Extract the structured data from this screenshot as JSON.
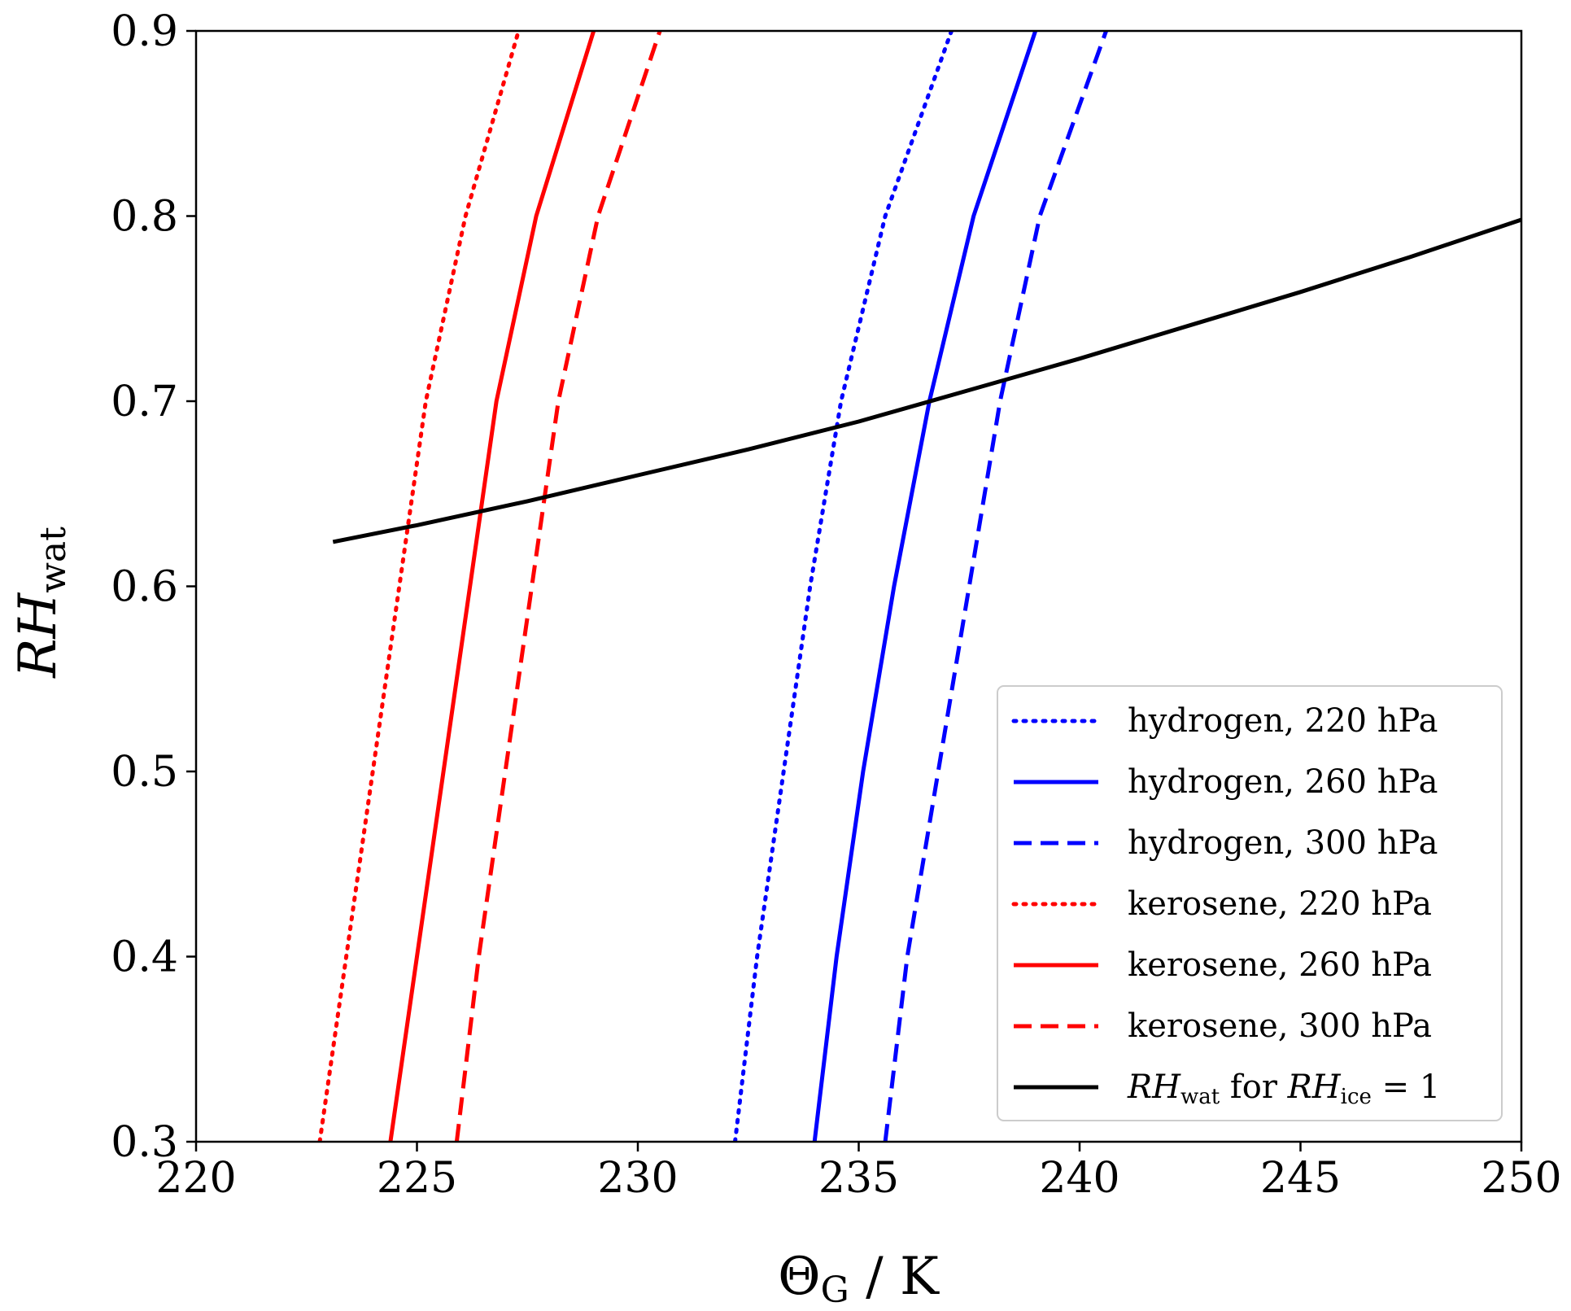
{
  "chart_data": {
    "type": "line",
    "title": "",
    "xlabel": {
      "main": "Θ",
      "sub": "G",
      "rest": " / K"
    },
    "ylabel": {
      "main": "RH",
      "sub": "wat"
    },
    "xlim": [
      220,
      250
    ],
    "ylim": [
      0.3,
      0.9
    ],
    "xticks": [
      220,
      225,
      230,
      235,
      240,
      245,
      250
    ],
    "yticks": [
      0.3,
      0.4,
      0.5,
      0.6,
      0.7,
      0.8,
      0.9
    ],
    "xtick_labels": [
      "220",
      "225",
      "230",
      "235",
      "240",
      "245",
      "250"
    ],
    "ytick_labels": [
      "0.3",
      "0.4",
      "0.5",
      "0.6",
      "0.7",
      "0.8",
      "0.9"
    ],
    "grid": false,
    "legend_position": "bottom-right",
    "series": [
      {
        "name": "hydrogen, 220 hPa",
        "color": "#0000ff",
        "style": "dotted",
        "points": [
          [
            232.2,
            0.3
          ],
          [
            232.7,
            0.4
          ],
          [
            233.3,
            0.5
          ],
          [
            233.9,
            0.6
          ],
          [
            234.6,
            0.7
          ],
          [
            235.6,
            0.8
          ],
          [
            237.1,
            0.9
          ]
        ]
      },
      {
        "name": "hydrogen, 260 hPa",
        "color": "#0000ff",
        "style": "solid",
        "points": [
          [
            234.0,
            0.3
          ],
          [
            234.5,
            0.4
          ],
          [
            235.1,
            0.5
          ],
          [
            235.8,
            0.6
          ],
          [
            236.6,
            0.7
          ],
          [
            237.6,
            0.8
          ],
          [
            239.0,
            0.9
          ]
        ]
      },
      {
        "name": "hydrogen, 300 hPa",
        "color": "#0000ff",
        "style": "dashed",
        "points": [
          [
            235.6,
            0.3
          ],
          [
            236.1,
            0.4
          ],
          [
            236.8,
            0.5
          ],
          [
            237.5,
            0.6
          ],
          [
            238.2,
            0.7
          ],
          [
            239.1,
            0.8
          ],
          [
            240.6,
            0.9
          ]
        ]
      },
      {
        "name": "kerosene, 220 hPa",
        "color": "#ff0000",
        "style": "dotted",
        "points": [
          [
            222.8,
            0.3
          ],
          [
            223.4,
            0.4
          ],
          [
            224.0,
            0.5
          ],
          [
            224.6,
            0.6
          ],
          [
            225.2,
            0.7
          ],
          [
            226.1,
            0.8
          ],
          [
            227.3,
            0.9
          ]
        ]
      },
      {
        "name": "kerosene, 260 hPa",
        "color": "#ff0000",
        "style": "solid",
        "points": [
          [
            224.4,
            0.3
          ],
          [
            225.0,
            0.4
          ],
          [
            225.6,
            0.5
          ],
          [
            226.2,
            0.6
          ],
          [
            226.8,
            0.7
          ],
          [
            227.7,
            0.8
          ],
          [
            229.0,
            0.9
          ]
        ]
      },
      {
        "name": "kerosene, 300 hPa",
        "color": "#ff0000",
        "style": "dashed",
        "points": [
          [
            225.9,
            0.3
          ],
          [
            226.4,
            0.4
          ],
          [
            227.0,
            0.5
          ],
          [
            227.6,
            0.6
          ],
          [
            228.2,
            0.7
          ],
          [
            229.1,
            0.8
          ],
          [
            230.5,
            0.9
          ]
        ]
      },
      {
        "name": "RH_wat for RH_ice = 1",
        "legend_label": {
          "a": "RH",
          "a_sub": "wat",
          "b": " for ",
          "c": "RH",
          "c_sub": "ice",
          "d": " = 1"
        },
        "color": "#000000",
        "style": "solid",
        "points": [
          [
            223.1,
            0.624
          ],
          [
            225.0,
            0.633
          ],
          [
            227.5,
            0.646
          ],
          [
            230.0,
            0.66
          ],
          [
            232.5,
            0.674
          ],
          [
            235.0,
            0.689
          ],
          [
            237.5,
            0.706
          ],
          [
            240.0,
            0.723
          ],
          [
            242.5,
            0.741
          ],
          [
            245.0,
            0.759
          ],
          [
            247.5,
            0.778
          ],
          [
            250.0,
            0.798
          ]
        ]
      }
    ]
  }
}
